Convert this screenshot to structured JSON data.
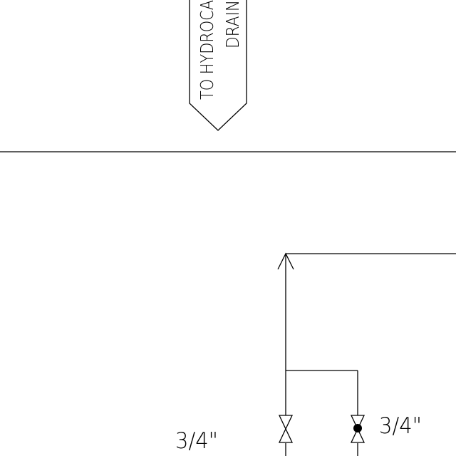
{
  "drawing": {
    "offpage_connector": {
      "line1": "TO HYDROCA",
      "line2": "DRAIN"
    },
    "size_labels": {
      "left": "3/4\"",
      "right": "3/4\""
    },
    "valves": {
      "left": {
        "type": "gate-valve"
      },
      "right": {
        "type": "ball-valve"
      }
    },
    "colors": {
      "line": "#000000",
      "background": "#ffffff"
    }
  }
}
